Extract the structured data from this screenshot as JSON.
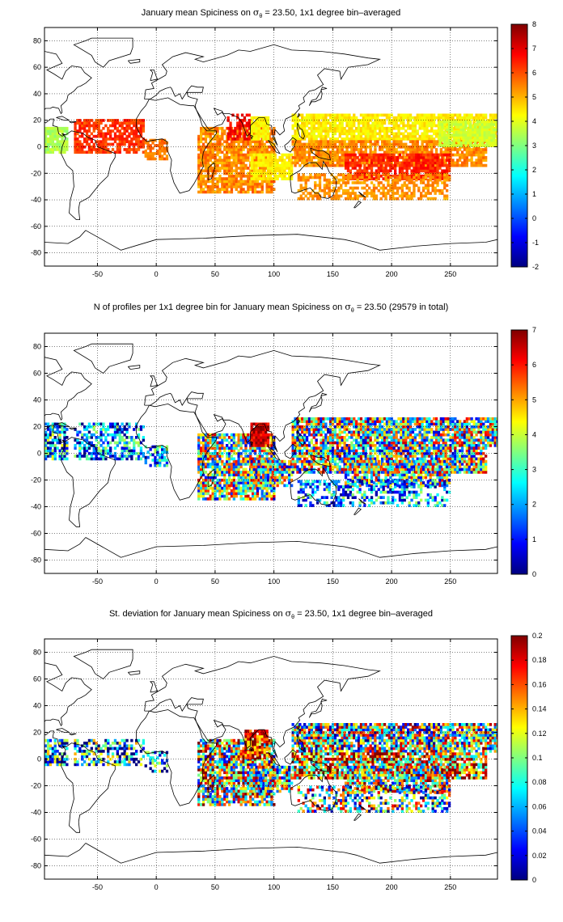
{
  "chart_data": [
    {
      "type": "heatmap",
      "title_parts": [
        "January mean Spiciness on ",
        "σ",
        "θ",
        " = 23.50, 1x1 degree bin–averaged"
      ],
      "xlim": [
        -95,
        290
      ],
      "ylim": [
        -90,
        90
      ],
      "xticks": [
        -50,
        0,
        50,
        100,
        150,
        200,
        250
      ],
      "yticks": [
        -80,
        -60,
        -40,
        -20,
        0,
        20,
        40,
        60,
        80
      ],
      "grid": true,
      "colorbar": {
        "min": -2,
        "max": 8,
        "ticks": [
          -2,
          -1,
          0,
          1,
          2,
          3,
          4,
          5,
          6,
          7,
          8
        ]
      },
      "data_regions": [
        {
          "lon": [
            -95,
            -75
          ],
          "lat": [
            -5,
            15
          ],
          "value": 3.5,
          "spread": 0.4,
          "density": 0.9
        },
        {
          "lon": [
            -70,
            -10
          ],
          "lat": [
            -5,
            20
          ],
          "value": 6.2,
          "spread": 0.5,
          "density": 0.75
        },
        {
          "lon": [
            -10,
            10
          ],
          "lat": [
            -10,
            5
          ],
          "value": 5.6,
          "spread": 0.4,
          "density": 0.7
        },
        {
          "lon": [
            35,
            100
          ],
          "lat": [
            -35,
            15
          ],
          "value": 5.4,
          "spread": 0.6,
          "density": 0.8
        },
        {
          "lon": [
            80,
            95
          ],
          "lat": [
            5,
            22
          ],
          "value": 4.3,
          "spread": 0.3,
          "density": 0.9
        },
        {
          "lon": [
            60,
            80
          ],
          "lat": [
            5,
            25
          ],
          "value": 6.8,
          "spread": 0.4,
          "density": 0.6
        },
        {
          "lon": [
            80,
            115
          ],
          "lat": [
            -25,
            -5
          ],
          "value": 4.4,
          "spread": 0.3,
          "density": 0.85
        },
        {
          "lon": [
            115,
            290
          ],
          "lat": [
            5,
            25
          ],
          "value": 4.4,
          "spread": 0.4,
          "density": 0.85
        },
        {
          "lon": [
            115,
            280
          ],
          "lat": [
            -15,
            5
          ],
          "value": 5.4,
          "spread": 0.5,
          "density": 0.85
        },
        {
          "lon": [
            160,
            250
          ],
          "lat": [
            -25,
            -5
          ],
          "value": 6.4,
          "spread": 0.5,
          "density": 0.8
        },
        {
          "lon": [
            120,
            250
          ],
          "lat": [
            -40,
            -20
          ],
          "value": 5.3,
          "spread": 0.4,
          "density": 0.55
        },
        {
          "lon": [
            240,
            290
          ],
          "lat": [
            0,
            20
          ],
          "value": 3.8,
          "spread": 0.3,
          "density": 0.85
        }
      ]
    },
    {
      "type": "heatmap",
      "title_parts": [
        "N of profiles per 1x1 degree bin for January mean Spiciness on ",
        "σ",
        "θ",
        " = 23.50 (29579 in total)"
      ],
      "xlim": [
        -95,
        290
      ],
      "ylim": [
        -90,
        90
      ],
      "xticks": [
        -50,
        0,
        50,
        100,
        150,
        200,
        250
      ],
      "yticks": [
        -80,
        -60,
        -40,
        -20,
        0,
        20,
        40,
        60,
        80
      ],
      "grid": true,
      "colorbar": {
        "min": 0,
        "max": 7,
        "ticks": [
          0,
          1,
          2,
          3,
          4,
          5,
          6,
          7
        ]
      },
      "data_regions": [
        {
          "lon": [
            -95,
            -75
          ],
          "lat": [
            -5,
            22
          ],
          "value": 2.0,
          "spread": 2.5,
          "density": 0.75
        },
        {
          "lon": [
            -70,
            -10
          ],
          "lat": [
            -5,
            22
          ],
          "value": 1.8,
          "spread": 2.2,
          "density": 0.6
        },
        {
          "lon": [
            -10,
            10
          ],
          "lat": [
            -10,
            5
          ],
          "value": 2.0,
          "spread": 2.0,
          "density": 0.6
        },
        {
          "lon": [
            35,
            100
          ],
          "lat": [
            -35,
            15
          ],
          "value": 3.5,
          "spread": 3.0,
          "density": 0.8
        },
        {
          "lon": [
            80,
            95
          ],
          "lat": [
            5,
            22
          ],
          "value": 6.6,
          "spread": 0.8,
          "density": 0.9
        },
        {
          "lon": [
            80,
            115
          ],
          "lat": [
            -25,
            -5
          ],
          "value": 3.5,
          "spread": 3.0,
          "density": 0.75
        },
        {
          "lon": [
            115,
            290
          ],
          "lat": [
            5,
            27
          ],
          "value": 3.5,
          "spread": 3.2,
          "density": 0.85
        },
        {
          "lon": [
            115,
            280
          ],
          "lat": [
            -15,
            5
          ],
          "value": 3.5,
          "spread": 3.2,
          "density": 0.85
        },
        {
          "lon": [
            160,
            250
          ],
          "lat": [
            -25,
            -5
          ],
          "value": 3.5,
          "spread": 3.0,
          "density": 0.75
        },
        {
          "lon": [
            120,
            250
          ],
          "lat": [
            -40,
            -20
          ],
          "value": 2.0,
          "spread": 2.0,
          "density": 0.45
        }
      ]
    },
    {
      "type": "heatmap",
      "title_parts": [
        "St. deviation for January mean Spiciness on ",
        "σ",
        "θ",
        " = 23.50, 1x1 degree bin–averaged"
      ],
      "xlim": [
        -95,
        290
      ],
      "ylim": [
        -90,
        90
      ],
      "xticks": [
        -50,
        0,
        50,
        100,
        150,
        200,
        250
      ],
      "yticks": [
        -80,
        -60,
        -40,
        -20,
        0,
        20,
        40,
        60,
        80
      ],
      "grid": true,
      "colorbar": {
        "min": 0,
        "max": 0.2,
        "ticks": [
          0,
          0.02,
          0.04,
          0.06,
          0.08,
          0.1,
          0.12,
          0.14,
          0.16,
          0.18,
          0.2
        ]
      },
      "data_regions": [
        {
          "lon": [
            -95,
            -75
          ],
          "lat": [
            -5,
            15
          ],
          "value": 0.05,
          "spread": 0.09,
          "density": 0.7
        },
        {
          "lon": [
            -70,
            -10
          ],
          "lat": [
            -5,
            15
          ],
          "value": 0.05,
          "spread": 0.1,
          "density": 0.55
        },
        {
          "lon": [
            -10,
            10
          ],
          "lat": [
            -10,
            5
          ],
          "value": 0.05,
          "spread": 0.08,
          "density": 0.5
        },
        {
          "lon": [
            35,
            100
          ],
          "lat": [
            -35,
            15
          ],
          "value": 0.12,
          "spread": 0.1,
          "density": 0.8
        },
        {
          "lon": [
            75,
            95
          ],
          "lat": [
            0,
            22
          ],
          "value": 0.17,
          "spread": 0.05,
          "density": 0.85
        },
        {
          "lon": [
            80,
            115
          ],
          "lat": [
            -25,
            -5
          ],
          "value": 0.1,
          "spread": 0.1,
          "density": 0.75
        },
        {
          "lon": [
            115,
            290
          ],
          "lat": [
            5,
            27
          ],
          "value": 0.1,
          "spread": 0.1,
          "density": 0.85
        },
        {
          "lon": [
            115,
            280
          ],
          "lat": [
            -15,
            5
          ],
          "value": 0.14,
          "spread": 0.09,
          "density": 0.85
        },
        {
          "lon": [
            160,
            250
          ],
          "lat": [
            -25,
            -5
          ],
          "value": 0.12,
          "spread": 0.1,
          "density": 0.75
        },
        {
          "lon": [
            120,
            250
          ],
          "lat": [
            -40,
            -20
          ],
          "value": 0.09,
          "spread": 0.1,
          "density": 0.45
        }
      ]
    }
  ]
}
